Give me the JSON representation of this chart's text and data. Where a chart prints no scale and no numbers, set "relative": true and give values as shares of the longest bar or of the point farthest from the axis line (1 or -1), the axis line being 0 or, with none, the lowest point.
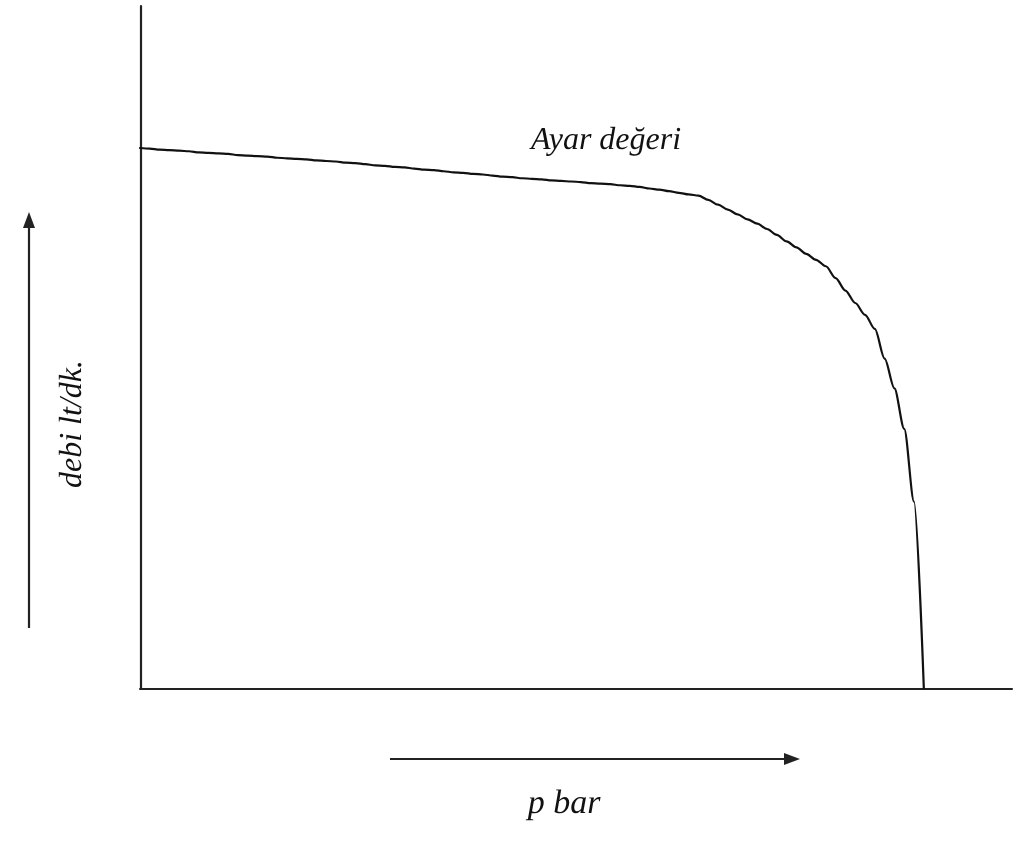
{
  "chart_data": {
    "type": "line",
    "relative": true,
    "grid": false,
    "line_style": "solid",
    "xlabel": "p bar",
    "ylabel": "debi lt/dk.",
    "annotations": [
      "Ayar değeri"
    ],
    "color": "#111111",
    "categories": [
      null,
      null,
      null,
      null,
      null,
      null,
      null,
      null,
      null,
      null,
      null,
      null,
      null,
      null,
      null,
      null,
      null,
      null,
      null,
      null,
      null,
      null,
      null,
      null,
      null,
      null,
      null,
      null,
      null,
      null,
      null,
      null,
      null,
      null,
      null,
      null,
      null,
      null,
      null,
      null,
      null,
      null,
      null,
      null,
      null,
      null,
      null,
      null,
      null,
      null,
      null,
      null,
      null,
      null,
      null,
      null,
      null,
      null,
      null,
      null,
      null,
      null,
      null,
      null,
      null,
      null,
      null,
      null,
      null,
      null,
      null,
      null,
      null,
      null,
      null,
      null,
      null,
      null,
      null,
      null,
      null,
      null,
      null,
      null,
      null,
      null,
      null,
      null,
      null,
      null
    ],
    "values": [
      1.0,
      0.999,
      0.997,
      0.996,
      0.995,
      0.994,
      0.992,
      0.991,
      0.99,
      0.989,
      0.987,
      0.986,
      0.985,
      0.984,
      0.982,
      0.981,
      0.98,
      0.979,
      0.977,
      0.976,
      0.975,
      0.973,
      0.972,
      0.97,
      0.968,
      0.967,
      0.965,
      0.964,
      0.962,
      0.96,
      0.959,
      0.957,
      0.955,
      0.954,
      0.952,
      0.951,
      0.949,
      0.947,
      0.946,
      0.944,
      0.943,
      0.942,
      0.94,
      0.939,
      0.938,
      0.937,
      0.935,
      0.934,
      0.933,
      0.931,
      0.93,
      0.928,
      0.925,
      0.923,
      0.92,
      0.917,
      0.914,
      0.912,
      0.904,
      0.895,
      0.886,
      0.877,
      0.868,
      0.86,
      0.85,
      0.839,
      0.827,
      0.816,
      0.804,
      0.793,
      0.781,
      0.759,
      0.736,
      0.713,
      0.691,
      0.665,
      0.61,
      0.555,
      0.48,
      0.345,
      0.0,
      null,
      null,
      null,
      null,
      null,
      null,
      null,
      null,
      null
    ]
  }
}
